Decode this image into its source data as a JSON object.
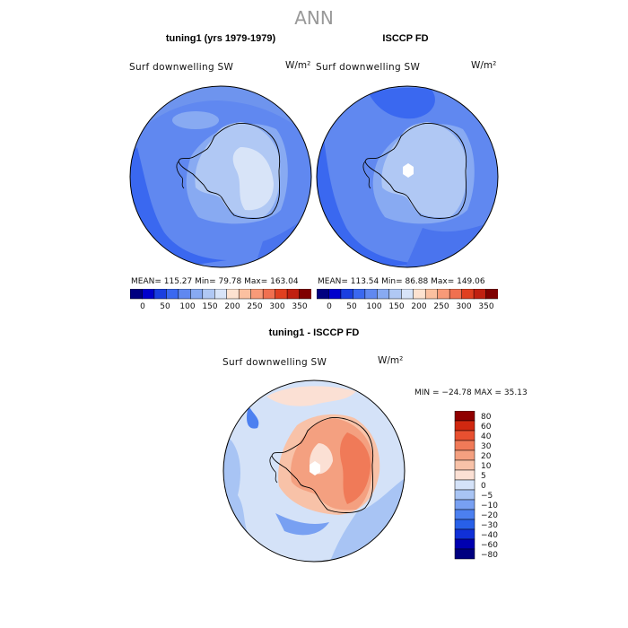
{
  "suptitle": "ANN",
  "colors": {
    "abs_levels": [
      "#000080",
      "#0000cc",
      "#1a3fe0",
      "#3a68f0",
      "#6088f0",
      "#88aaf2",
      "#b0c8f4",
      "#d8e4f8",
      "#fde2d0",
      "#fbc0a0",
      "#f89a78",
      "#f07050",
      "#e04020",
      "#c02010",
      "#800000"
    ],
    "diff_levels": [
      "#000080",
      "#0000b0",
      "#1030d8",
      "#2860e8",
      "#4c80f0",
      "#78a0f2",
      "#a8c4f4",
      "#d4e2f8",
      "#fbe0d4",
      "#f8c2a8",
      "#f4a080",
      "#f07a58",
      "#e85030",
      "#d02810",
      "#900000"
    ],
    "coast": "#000000",
    "gridline": "#888888"
  },
  "panels": [
    {
      "title": "tuning1 (yrs 1979-1979)",
      "variable": "Surf downwelling SW",
      "units": "W/m²",
      "stats": "MEAN= 115.27   Min=  79.78   Max= 163.04"
    },
    {
      "title": "ISCCP FD",
      "variable": "Surf downwelling SW",
      "units": "W/m²",
      "stats": "MEAN= 113.54   Min=  86.88   Max= 149.06"
    },
    {
      "title": "tuning1 - ISCCP FD",
      "variable": "Surf downwelling SW",
      "units": "W/m²",
      "stats": "MIN = −24.78 MAX =  35.13"
    }
  ],
  "abs_colorbar_ticks": [
    "0",
    "50",
    "100",
    "150",
    "200",
    "250",
    "300",
    "350"
  ],
  "diff_colorbar_ticks": [
    "80",
    "60",
    "40",
    "30",
    "20",
    "10",
    "5",
    "0",
    "−5",
    "−10",
    "−20",
    "−30",
    "−40",
    "−60",
    "−80"
  ],
  "chart_data": [
    {
      "type": "heatmap",
      "projection": "south polar stereographic",
      "title": "tuning1 (yrs 1979-1979)",
      "variable": "Surf downwelling SW",
      "units": "W/m²",
      "mean": 115.27,
      "min": 79.78,
      "max": 163.04,
      "levels": [
        0,
        25,
        50,
        75,
        100,
        125,
        150,
        175,
        200,
        225,
        250,
        275,
        300,
        325,
        350
      ],
      "colorbar_ticks": [
        0,
        50,
        100,
        150,
        200,
        250,
        300,
        350
      ]
    },
    {
      "type": "heatmap",
      "projection": "south polar stereographic",
      "title": "ISCCP FD",
      "variable": "Surf downwelling SW",
      "units": "W/m²",
      "mean": 113.54,
      "min": 86.88,
      "max": 149.06,
      "levels": [
        0,
        25,
        50,
        75,
        100,
        125,
        150,
        175,
        200,
        225,
        250,
        275,
        300,
        325,
        350
      ],
      "colorbar_ticks": [
        0,
        50,
        100,
        150,
        200,
        250,
        300,
        350
      ]
    },
    {
      "type": "heatmap",
      "projection": "south polar stereographic",
      "title": "tuning1 - ISCCP FD",
      "variable": "Surf downwelling SW",
      "units": "W/m²",
      "min": -24.78,
      "max": 35.13,
      "levels": [
        -80,
        -60,
        -40,
        -30,
        -20,
        -10,
        -5,
        0,
        5,
        10,
        20,
        30,
        40,
        60,
        80
      ],
      "colorbar_ticks": [
        80,
        60,
        40,
        30,
        20,
        10,
        5,
        0,
        -5,
        -10,
        -20,
        -30,
        -40,
        -60,
        -80
      ]
    }
  ]
}
